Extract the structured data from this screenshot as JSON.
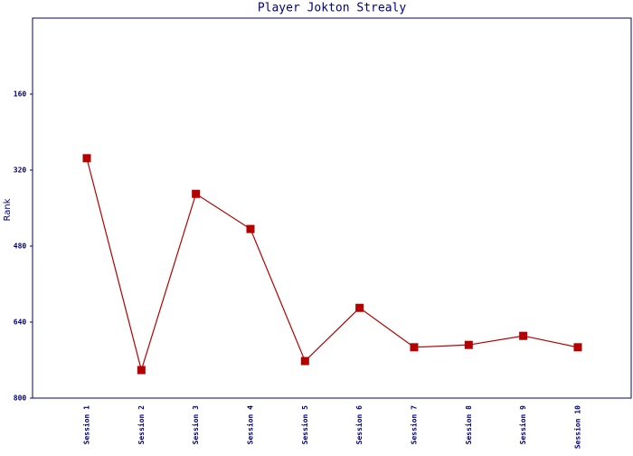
{
  "chart_data": {
    "type": "line",
    "title": "Player Jokton Strealy",
    "y_label": "Rank",
    "categories": [
      "Session 1",
      "Session 2",
      "Session 3",
      "Session 4",
      "Session 5",
      "Session 6",
      "Session 7",
      "Session 8",
      "Session 9",
      "Session 10"
    ],
    "series": [
      {
        "name": "Rank",
        "color": "#b40000",
        "values": [
          295,
          741,
          370,
          444,
          722,
          610,
          693,
          688,
          669,
          693
        ]
      }
    ],
    "ylim": [
      800,
      0
    ],
    "yticks": [
      160,
      320,
      480,
      640,
      800
    ],
    "grid": false
  }
}
